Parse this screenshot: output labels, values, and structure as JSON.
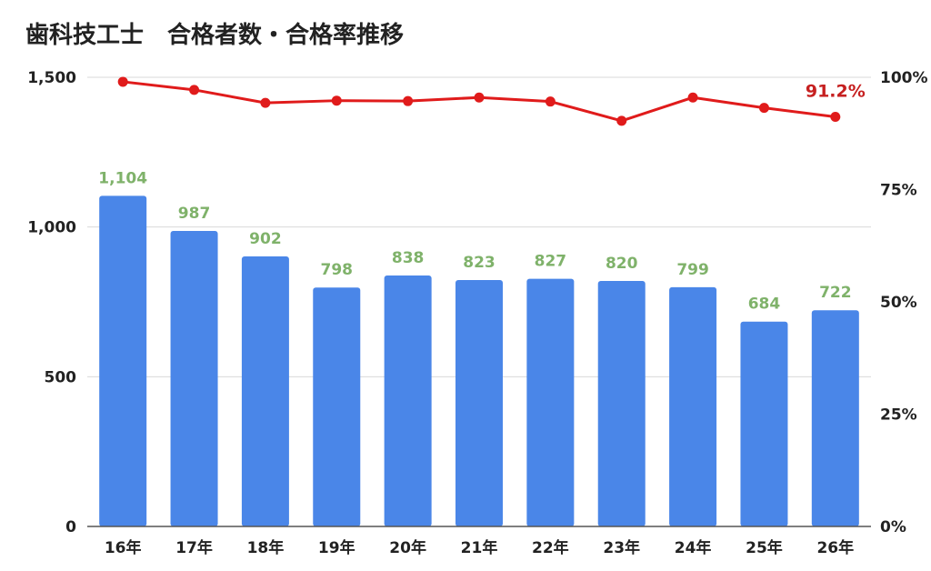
{
  "title": "歯科技工士　合格者数・合格率推移",
  "colors": {
    "bar": "#4a86e8",
    "bar_label": "#7fb26a",
    "line": "#e01b1b",
    "line_label": "#c62020",
    "grid": "#d9d9d9",
    "axis": "#555555"
  },
  "chart_data": {
    "type": "bar",
    "categories": [
      "16年",
      "17年",
      "18年",
      "19年",
      "20年",
      "21年",
      "22年",
      "23年",
      "24年",
      "25年",
      "26年"
    ],
    "series": [
      {
        "axis": "left",
        "type": "bar",
        "values": [
          1104,
          987,
          902,
          798,
          838,
          823,
          827,
          820,
          799,
          684,
          722
        ],
        "labels": [
          "1,104",
          "987",
          "902",
          "798",
          "838",
          "823",
          "827",
          "820",
          "799",
          "684",
          "722"
        ]
      },
      {
        "axis": "right",
        "type": "line",
        "values": [
          99.0,
          97.2,
          94.3,
          94.8,
          94.7,
          95.5,
          94.6,
          90.3,
          95.5,
          93.2,
          91.2
        ]
      }
    ],
    "annotations": [
      {
        "series": 1,
        "index": 10,
        "text": "91.2%"
      }
    ],
    "yleft": {
      "ylim": [
        0,
        1500
      ],
      "ticks": [
        0,
        500,
        1000,
        1500
      ],
      "tick_labels": [
        "0",
        "500",
        "1,000",
        "1,500"
      ]
    },
    "yright": {
      "ylim": [
        0,
        100
      ],
      "ticks": [
        0,
        25,
        50,
        75,
        100
      ],
      "tick_labels": [
        "0%",
        "25%",
        "50%",
        "75%",
        "100%"
      ]
    },
    "grid": true,
    "legend": "none"
  }
}
